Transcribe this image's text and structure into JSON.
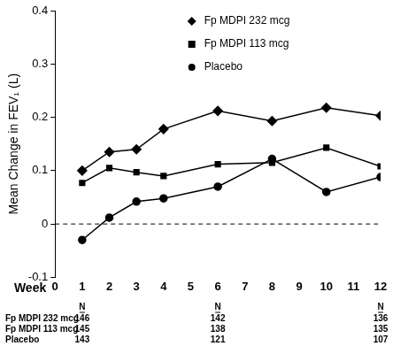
{
  "chart_data": {
    "type": "line",
    "x_label": "Week",
    "y_label": "Mean Change in FEV₁ (L)",
    "xlim": [
      0,
      12
    ],
    "xticks": [
      0,
      1,
      2,
      3,
      4,
      5,
      6,
      7,
      8,
      9,
      10,
      11,
      12
    ],
    "ylim": [
      -0.1,
      0.4
    ],
    "yticks": [
      -0.1,
      0,
      0.1,
      0.2,
      0.3,
      0.4
    ],
    "grid": false,
    "legend": "upper center",
    "series": [
      {
        "name": "Fp MDPI 232 mcg",
        "color": "#000000",
        "marker": "diamond",
        "line_style": "solid",
        "x": [
          1,
          2,
          3,
          4,
          6,
          8,
          10,
          12
        ],
        "values": [
          0.1,
          0.135,
          0.14,
          0.178,
          0.212,
          0.193,
          0.218,
          0.203
        ]
      },
      {
        "name": "Fp MDPI 113 mcg",
        "color": "#000000",
        "marker": "square",
        "line_style": "solid",
        "x": [
          1,
          2,
          3,
          4,
          6,
          8,
          10,
          12
        ],
        "values": [
          0.077,
          0.105,
          0.097,
          0.09,
          0.112,
          0.115,
          0.143,
          0.108
        ]
      },
      {
        "name": "Placebo",
        "color": "#000000",
        "marker": "circle",
        "line_style": "solid",
        "x": [
          1,
          2,
          3,
          4,
          6,
          8,
          10,
          12
        ],
        "values": [
          -0.03,
          0.012,
          0.042,
          0.048,
          0.07,
          0.122,
          0.06,
          0.088
        ]
      }
    ],
    "n_table": {
      "header": "N",
      "x": [
        1,
        6,
        12
      ],
      "rows": [
        {
          "name": "Fp MDPI 232 mcg",
          "values": [
            146,
            142,
            136
          ]
        },
        {
          "name": "Fp MDPI 113 mcg",
          "values": [
            145,
            138,
            135
          ]
        },
        {
          "name": "Placebo",
          "values": [
            143,
            121,
            107
          ]
        }
      ]
    }
  }
}
